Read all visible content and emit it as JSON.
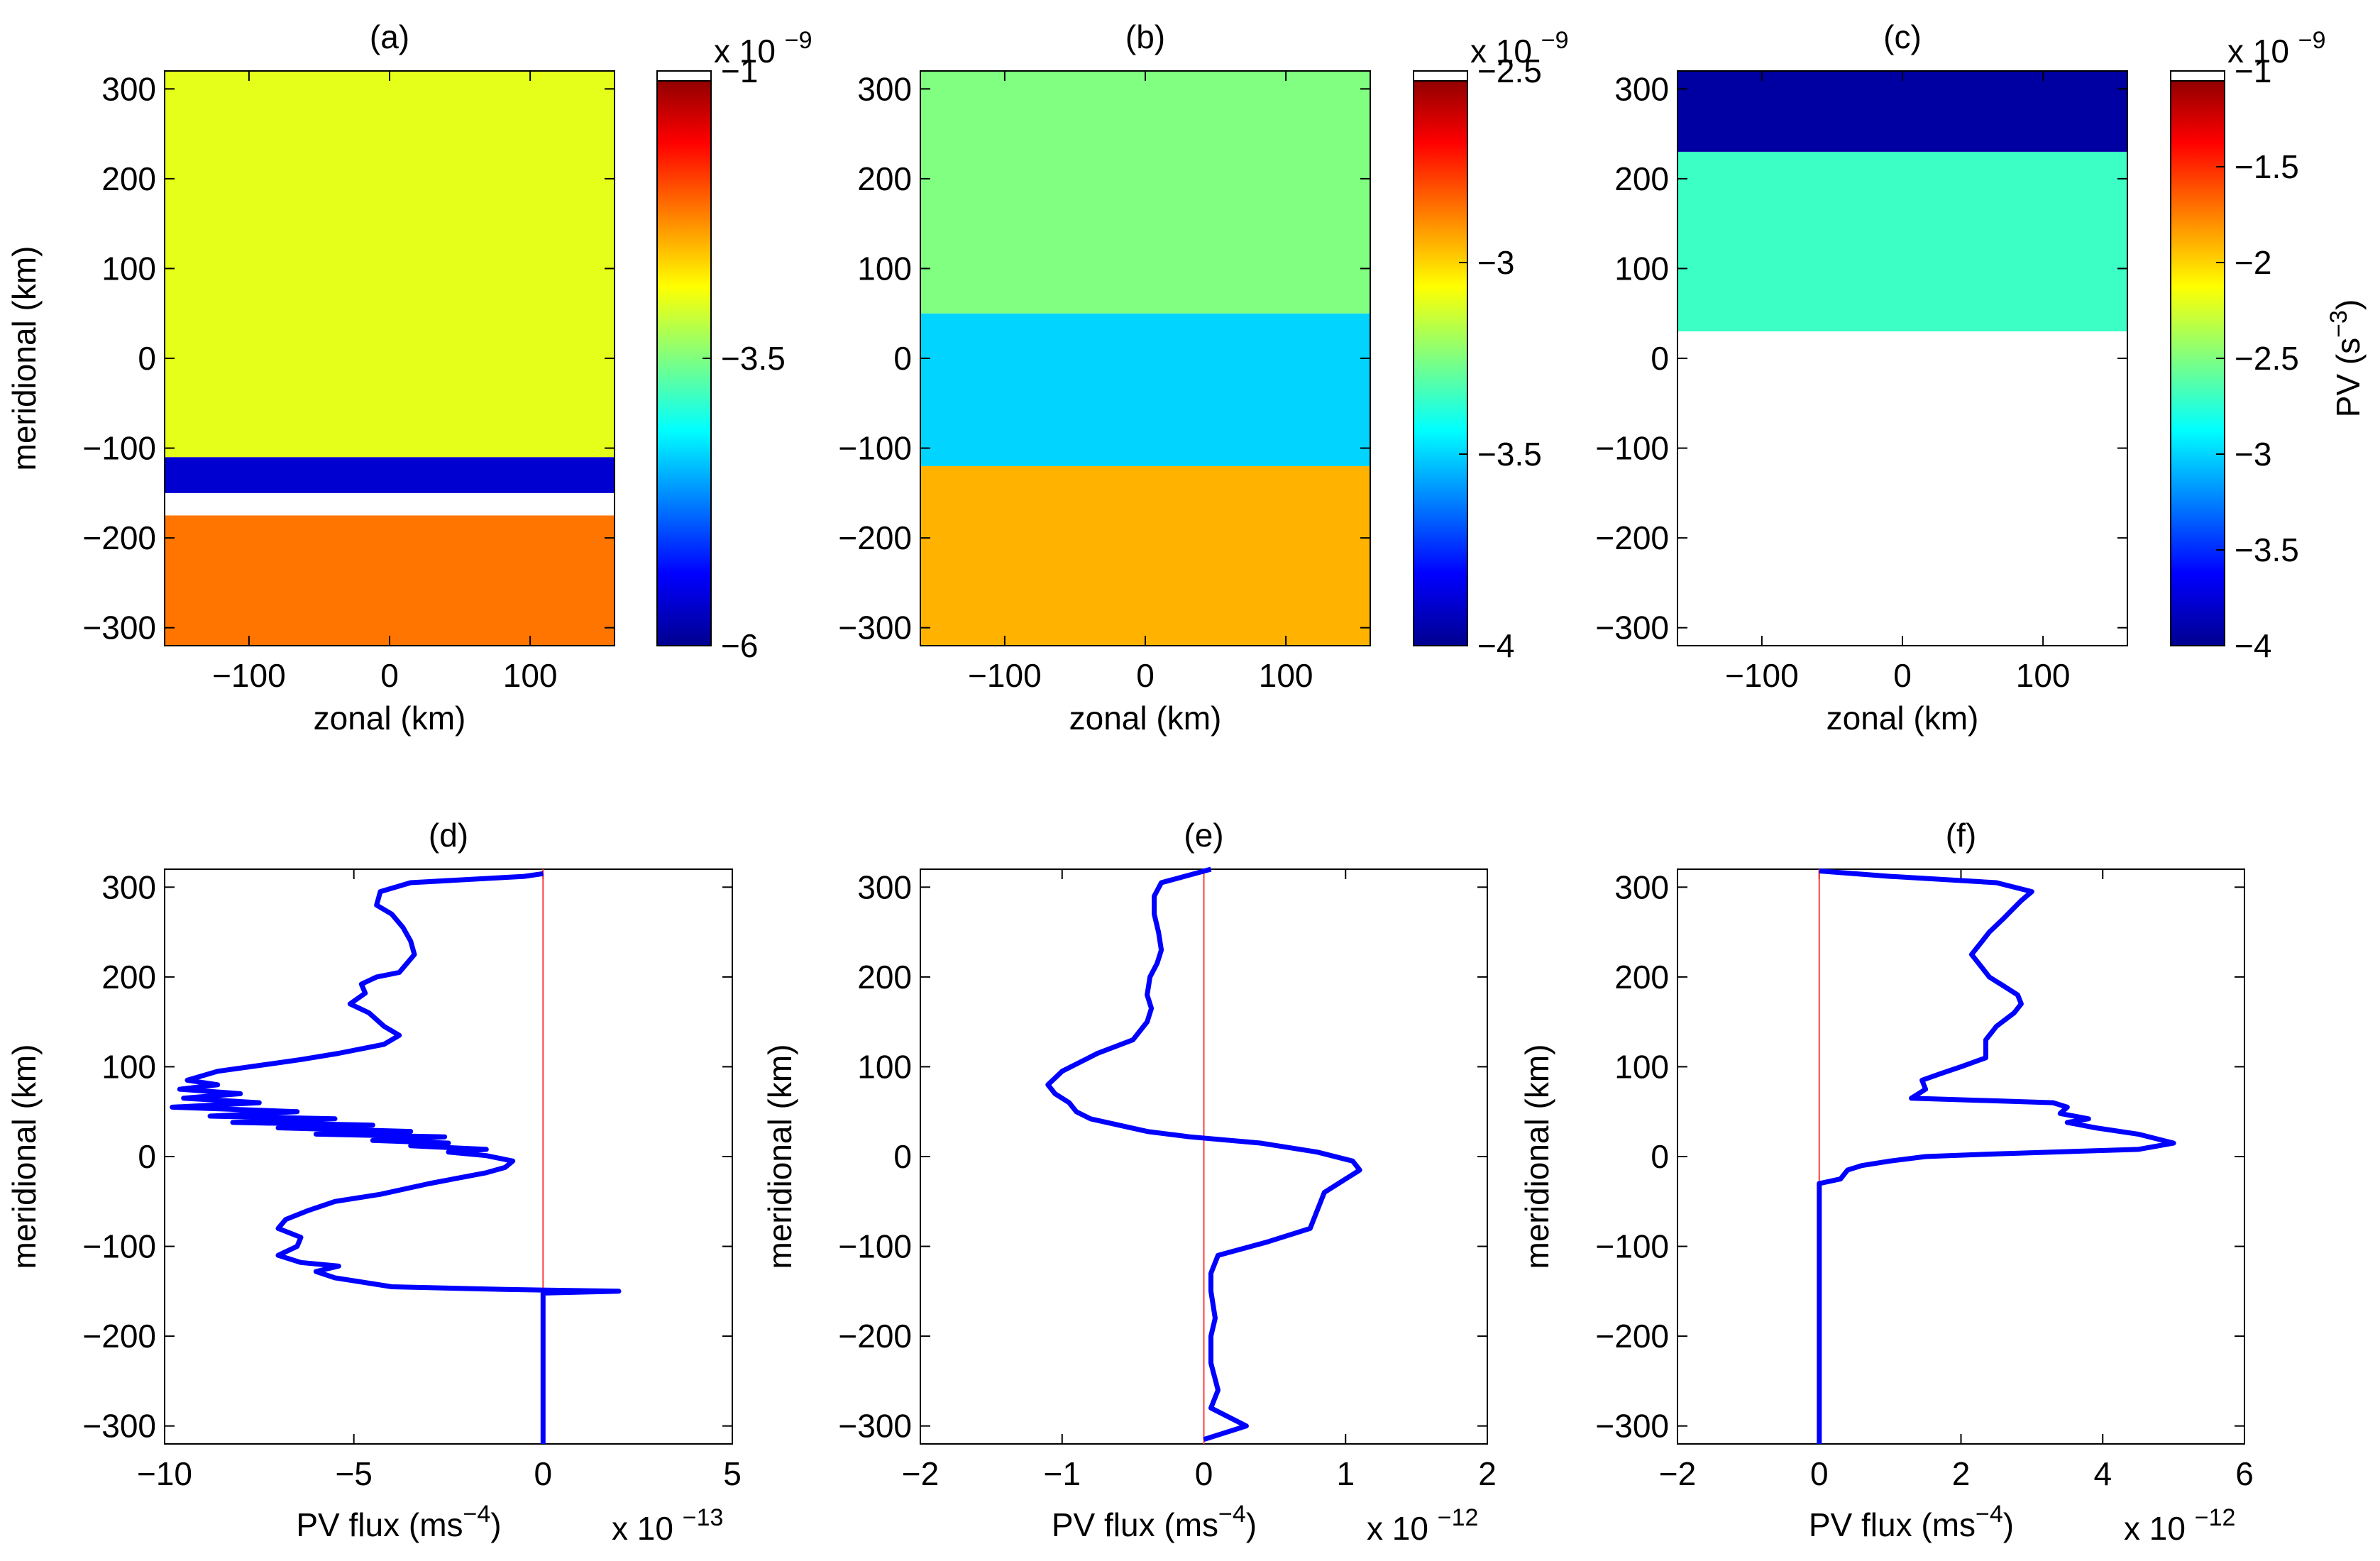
{
  "chart_data": [
    {
      "panel": "(a)",
      "type": "heatmap",
      "xlabel": "zonal (km)",
      "ylabel": "meridional (km)",
      "xlim": [
        -160,
        160
      ],
      "ylim": [
        -320,
        320
      ],
      "xticks": [
        -100,
        0,
        100
      ],
      "yticks": [
        -300,
        -200,
        -100,
        0,
        100,
        200,
        300
      ],
      "colorbar": {
        "min": -6,
        "max": -1,
        "ticks": [
          -1,
          -3.5,
          -6
        ],
        "exponent": "x 10",
        "exponent_power": "-9",
        "label": ""
      },
      "blank_region": [
        -175,
        -150
      ],
      "field_bands": [
        {
          "y": [
            -320,
            -175
          ],
          "level": -2.2
        },
        {
          "y": [
            -175,
            -150
          ],
          "level": null
        },
        {
          "y": [
            -150,
            -110
          ],
          "level": -5.6
        },
        {
          "y": [
            -110,
            320
          ],
          "level": -3.0
        }
      ]
    },
    {
      "panel": "(b)",
      "type": "heatmap",
      "xlabel": "zonal (km)",
      "ylabel": "",
      "xlim": [
        -160,
        160
      ],
      "ylim": [
        -320,
        320
      ],
      "xticks": [
        -100,
        0,
        100
      ],
      "yticks": [
        -300,
        -200,
        -100,
        0,
        100,
        200,
        300
      ],
      "colorbar": {
        "min": -4,
        "max": -2.5,
        "ticks": [
          -2.5,
          -3,
          -3.5,
          -4
        ],
        "exponent": "x 10",
        "exponent_power": "-9",
        "label": ""
      },
      "field_bands": [
        {
          "y": [
            -320,
            -120
          ],
          "level": -2.95
        },
        {
          "y": [
            -120,
            50
          ],
          "level": -3.5
        },
        {
          "y": [
            50,
            320
          ],
          "level": -3.25
        }
      ]
    },
    {
      "panel": "(c)",
      "type": "heatmap",
      "xlabel": "zonal (km)",
      "ylabel": "",
      "xlim": [
        -160,
        160
      ],
      "ylim": [
        -320,
        320
      ],
      "xticks": [
        -100,
        0,
        100
      ],
      "yticks": [
        -300,
        -200,
        -100,
        0,
        100,
        200,
        300
      ],
      "colorbar": {
        "min": -4,
        "max": -1,
        "ticks": [
          -1,
          -1.5,
          -2,
          -2.5,
          -3,
          -3.5,
          -4
        ],
        "exponent": "x 10",
        "exponent_power": "-9",
        "label": "PV (s",
        "label_power": "-3",
        "label_close": ")"
      },
      "field_bands": [
        {
          "y": [
            -320,
            30
          ],
          "level": null
        },
        {
          "y": [
            30,
            230
          ],
          "level": -2.7
        },
        {
          "y": [
            230,
            320
          ],
          "level": -3.9
        }
      ]
    },
    {
      "panel": "(d)",
      "type": "line",
      "xlabel": "PV flux (ms",
      "xlabel_power": "-4",
      "xlabel_close": ")",
      "ylabel": "meridional (km)",
      "exponent": "x 10",
      "exponent_power": "-13",
      "xlim": [
        -10,
        5
      ],
      "ylim": [
        -320,
        320
      ],
      "xticks": [
        -10,
        -5,
        0,
        5
      ],
      "yticks": [
        -300,
        -200,
        -100,
        0,
        100,
        200,
        300
      ],
      "series": [
        {
          "name": "PV flux",
          "color": "#0000ff",
          "points": [
            [
              0,
              315
            ],
            [
              -0.5,
              312
            ],
            [
              -3.5,
              305
            ],
            [
              -4.3,
              295
            ],
            [
              -4.4,
              280
            ],
            [
              -4.0,
              270
            ],
            [
              -3.7,
              255
            ],
            [
              -3.5,
              240
            ],
            [
              -3.4,
              225
            ],
            [
              -3.6,
              215
            ],
            [
              -3.8,
              205
            ],
            [
              -4.4,
              200
            ],
            [
              -4.8,
              192
            ],
            [
              -4.7,
              182
            ],
            [
              -5.1,
              170
            ],
            [
              -4.6,
              160
            ],
            [
              -4.2,
              145
            ],
            [
              -3.8,
              135
            ],
            [
              -4.2,
              125
            ],
            [
              -5.4,
              115
            ],
            [
              -6.4,
              108
            ],
            [
              -7.4,
              102
            ],
            [
              -8.6,
              95
            ],
            [
              -9.4,
              85
            ],
            [
              -8.6,
              80
            ],
            [
              -9.6,
              75
            ],
            [
              -8.0,
              70
            ],
            [
              -9.5,
              65
            ],
            [
              -7.5,
              60
            ],
            [
              -9.8,
              55
            ],
            [
              -6.5,
              50
            ],
            [
              -8.8,
              45
            ],
            [
              -5.5,
              42
            ],
            [
              -8.2,
              38
            ],
            [
              -4.5,
              35
            ],
            [
              -7.0,
              32
            ],
            [
              -3.5,
              28
            ],
            [
              -6.0,
              25
            ],
            [
              -2.6,
              22
            ],
            [
              -4.5,
              18
            ],
            [
              -2.5,
              15
            ],
            [
              -3.5,
              12
            ],
            [
              -1.5,
              8
            ],
            [
              -2.5,
              5
            ],
            [
              -1.5,
              1
            ],
            [
              -0.8,
              -5
            ],
            [
              -1.0,
              -12
            ],
            [
              -1.5,
              -18
            ],
            [
              -3.0,
              -30
            ],
            [
              -4.3,
              -42
            ],
            [
              -5.5,
              -50
            ],
            [
              -6.2,
              -60
            ],
            [
              -6.8,
              -70
            ],
            [
              -7.0,
              -80
            ],
            [
              -6.4,
              -90
            ],
            [
              -6.5,
              -100
            ],
            [
              -7.0,
              -110
            ],
            [
              -6.4,
              -118
            ],
            [
              -5.4,
              -122
            ],
            [
              -6.0,
              -128
            ],
            [
              -5.5,
              -135
            ],
            [
              -4.0,
              -145
            ],
            [
              -1.0,
              -148
            ],
            [
              2.0,
              -150
            ],
            [
              0,
              -152
            ],
            [
              0,
              -320
            ]
          ]
        }
      ],
      "reference_line": {
        "x": 0,
        "color": "#ff4040"
      }
    },
    {
      "panel": "(e)",
      "type": "line",
      "xlabel": "PV flux (ms",
      "xlabel_power": "-4",
      "xlabel_close": ")",
      "ylabel": "meridional (km)",
      "exponent": "x 10",
      "exponent_power": "-12",
      "xlim": [
        -2,
        2
      ],
      "ylim": [
        -320,
        320
      ],
      "xticks": [
        -2,
        -1,
        0,
        1,
        2
      ],
      "yticks": [
        -300,
        -200,
        -100,
        0,
        100,
        200,
        300
      ],
      "series": [
        {
          "name": "PV flux",
          "color": "#0000ff",
          "points": [
            [
              0.05,
              320
            ],
            [
              -0.3,
              305
            ],
            [
              -0.35,
              290
            ],
            [
              -0.35,
              270
            ],
            [
              -0.32,
              250
            ],
            [
              -0.3,
              230
            ],
            [
              -0.33,
              215
            ],
            [
              -0.38,
              200
            ],
            [
              -0.4,
              180
            ],
            [
              -0.37,
              165
            ],
            [
              -0.4,
              150
            ],
            [
              -0.45,
              140
            ],
            [
              -0.5,
              130
            ],
            [
              -0.75,
              115
            ],
            [
              -1.0,
              95
            ],
            [
              -1.1,
              80
            ],
            [
              -1.05,
              70
            ],
            [
              -0.95,
              60
            ],
            [
              -0.9,
              50
            ],
            [
              -0.8,
              42
            ],
            [
              -0.6,
              35
            ],
            [
              -0.4,
              28
            ],
            [
              -0.1,
              22
            ],
            [
              0.4,
              15
            ],
            [
              0.8,
              5
            ],
            [
              1.05,
              -5
            ],
            [
              1.1,
              -15
            ],
            [
              1.0,
              -25
            ],
            [
              0.85,
              -40
            ],
            [
              0.8,
              -60
            ],
            [
              0.75,
              -80
            ],
            [
              0.45,
              -95
            ],
            [
              0.1,
              -110
            ],
            [
              0.05,
              -130
            ],
            [
              0.05,
              -150
            ],
            [
              0.08,
              -180
            ],
            [
              0.05,
              -200
            ],
            [
              0.05,
              -230
            ],
            [
              0.1,
              -260
            ],
            [
              0.05,
              -280
            ],
            [
              0.3,
              -300
            ],
            [
              0,
              -315
            ]
          ]
        }
      ],
      "reference_line": {
        "x": 0,
        "color": "#ff4040"
      }
    },
    {
      "panel": "(f)",
      "type": "line",
      "xlabel": "PV flux (ms",
      "xlabel_power": "-4",
      "xlabel_close": ")",
      "ylabel": "meridional (km)",
      "exponent": "x 10",
      "exponent_power": "-12",
      "xlim": [
        -2,
        6
      ],
      "ylim": [
        -320,
        320
      ],
      "xticks": [
        -2,
        0,
        2,
        4,
        6
      ],
      "yticks": [
        -300,
        -200,
        -100,
        0,
        100,
        200,
        300
      ],
      "series": [
        {
          "name": "PV flux",
          "color": "#0000ff",
          "points": [
            [
              0,
              318
            ],
            [
              1.0,
              312
            ],
            [
              2.5,
              305
            ],
            [
              3.0,
              295
            ],
            [
              2.85,
              285
            ],
            [
              2.6,
              265
            ],
            [
              2.4,
              250
            ],
            [
              2.3,
              240
            ],
            [
              2.15,
              225
            ],
            [
              2.3,
              210
            ],
            [
              2.4,
              200
            ],
            [
              2.6,
              190
            ],
            [
              2.8,
              180
            ],
            [
              2.85,
              170
            ],
            [
              2.75,
              160
            ],
            [
              2.5,
              145
            ],
            [
              2.35,
              130
            ],
            [
              2.35,
              110
            ],
            [
              2.0,
              100
            ],
            [
              1.7,
              92
            ],
            [
              1.45,
              85
            ],
            [
              1.5,
              75
            ],
            [
              1.4,
              70
            ],
            [
              1.3,
              65
            ],
            [
              3.3,
              60
            ],
            [
              3.5,
              55
            ],
            [
              3.4,
              48
            ],
            [
              3.8,
              42
            ],
            [
              3.5,
              38
            ],
            [
              3.9,
              32
            ],
            [
              4.5,
              25
            ],
            [
              5.0,
              15
            ],
            [
              4.5,
              8
            ],
            [
              2.5,
              3
            ],
            [
              1.5,
              0
            ],
            [
              1.0,
              -5
            ],
            [
              0.6,
              -10
            ],
            [
              0.4,
              -15
            ],
            [
              0.3,
              -25
            ],
            [
              0,
              -30
            ],
            [
              0,
              -320
            ]
          ]
        }
      ],
      "reference_line": {
        "x": 0,
        "color": "#ff4040"
      }
    }
  ]
}
